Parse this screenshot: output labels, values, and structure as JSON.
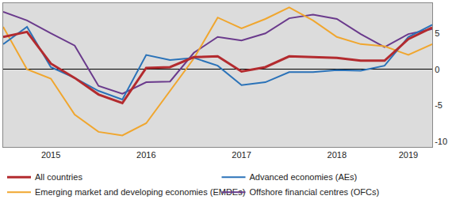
{
  "chart_data": {
    "type": "line",
    "categories": [
      null,
      null,
      "2015",
      null,
      null,
      null,
      "2016",
      null,
      null,
      null,
      "2017",
      null,
      null,
      null,
      "2018",
      null,
      null,
      "2019",
      null
    ],
    "series": [
      {
        "name": "All countries",
        "color": "#b32b2f",
        "values": [
          4.5,
          5.2,
          0.8,
          -1.2,
          -3.5,
          -4.7,
          0.2,
          0.3,
          1.7,
          1.8,
          -0.3,
          0.3,
          1.8,
          1.7,
          1.6,
          1.2,
          1.2,
          4.2,
          5.8
        ]
      },
      {
        "name": "Advanced economies (AEs)",
        "color": "#2a72b8",
        "values": [
          3.5,
          5.9,
          0.3,
          -1.2,
          -3.0,
          -4.2,
          2.0,
          1.3,
          1.6,
          0.5,
          -2.2,
          -1.8,
          -0.4,
          -0.4,
          -0.1,
          -0.2,
          0.5,
          4.5,
          6.2
        ]
      },
      {
        "name": "Emerging market and developing economies (EMDEs)",
        "color": "#f0a62e",
        "values": [
          5.9,
          0.0,
          -1.3,
          -6.3,
          -8.7,
          -9.2,
          -7.5,
          -3.0,
          1.5,
          7.2,
          5.7,
          7.0,
          8.6,
          6.8,
          4.5,
          3.5,
          3.2,
          2.0,
          3.5
        ]
      },
      {
        "name": "Offshore financial centres (OFCs)",
        "color": "#6a3a8c",
        "values": [
          8.0,
          6.8,
          5.0,
          3.3,
          -2.3,
          -3.4,
          -1.8,
          -1.7,
          2.3,
          4.5,
          4.0,
          5.0,
          7.1,
          7.6,
          7.0,
          4.9,
          3.1,
          4.9,
          5.6
        ]
      }
    ],
    "ylim": [
      -10.8,
      9.2
    ],
    "yticks": [
      -10,
      -5,
      0,
      5
    ],
    "grid": false,
    "legend": "bottom"
  }
}
